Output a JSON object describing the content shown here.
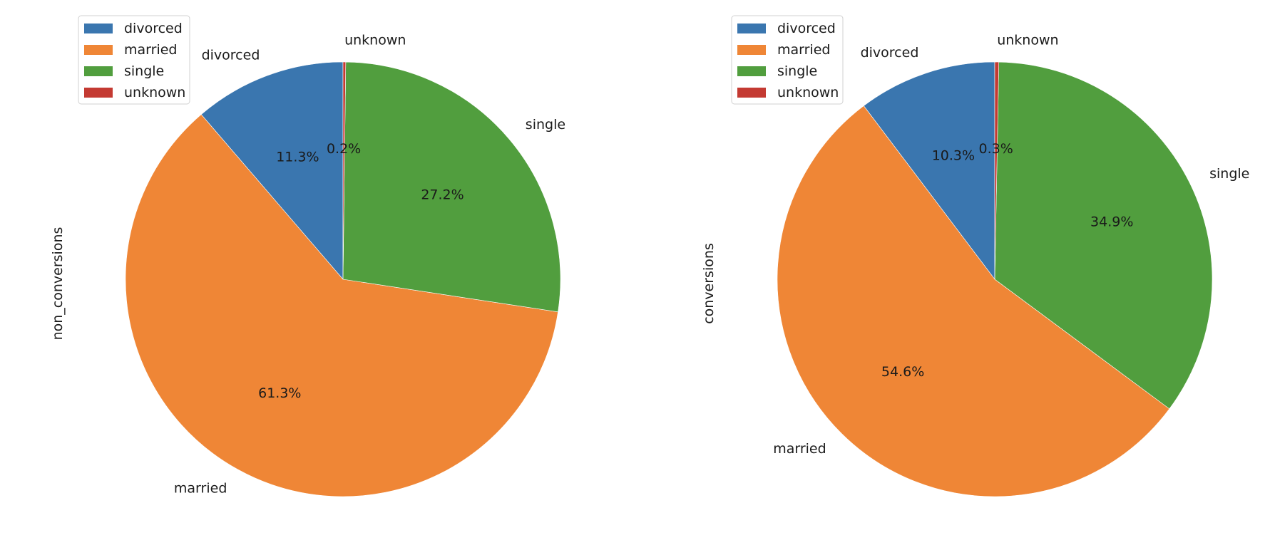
{
  "chart_data": [
    {
      "type": "pie",
      "ylabel": "non_conversions",
      "categories": [
        "divorced",
        "married",
        "single",
        "unknown"
      ],
      "values": [
        11.3,
        61.3,
        27.2,
        0.2
      ],
      "value_labels": [
        "11.3%",
        "61.3%",
        "27.2%",
        "0.2%"
      ],
      "colors": [
        "#3a76af",
        "#ef8636",
        "#519e3e",
        "#c43a32"
      ],
      "start_angle_deg": 90,
      "direction": "counterclockwise",
      "legend": {
        "entries": [
          "divorced",
          "married",
          "single",
          "unknown"
        ],
        "placement": "upper-left"
      }
    },
    {
      "type": "pie",
      "ylabel": "conversions",
      "categories": [
        "divorced",
        "married",
        "single",
        "unknown"
      ],
      "values": [
        10.3,
        54.6,
        34.9,
        0.3
      ],
      "value_labels": [
        "10.3%",
        "54.6%",
        "34.9%",
        "0.3%"
      ],
      "colors": [
        "#3a76af",
        "#ef8636",
        "#519e3e",
        "#c43a32"
      ],
      "start_angle_deg": 90,
      "direction": "counterclockwise",
      "legend": {
        "entries": [
          "divorced",
          "married",
          "single",
          "unknown"
        ],
        "placement": "upper-left"
      }
    }
  ]
}
